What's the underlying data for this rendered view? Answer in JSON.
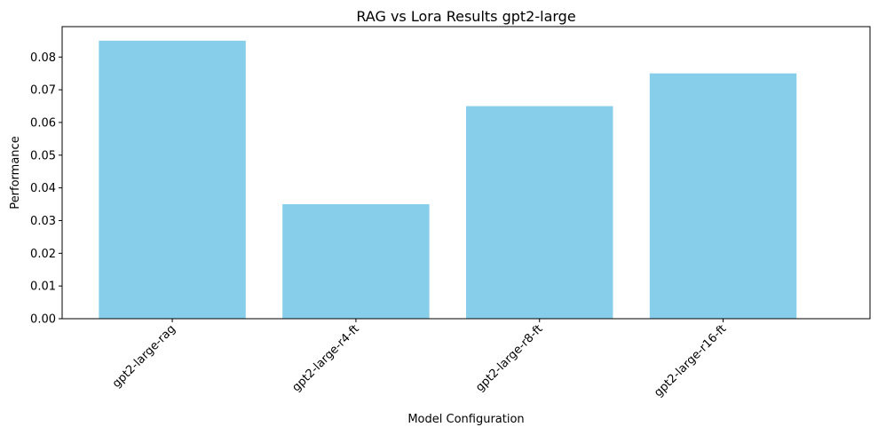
{
  "chart_data": {
    "type": "bar",
    "title": "RAG vs Lora Results gpt2-large",
    "xlabel": "Model Configuration",
    "ylabel": "Performance",
    "categories": [
      "gpt2-large-rag",
      "gpt2-large-r4-ft",
      "gpt2-large-r8-ft",
      "gpt2-large-r16-ft"
    ],
    "values": [
      0.085,
      0.035,
      0.065,
      0.075
    ],
    "ylim": [
      0,
      0.0893
    ],
    "yticks": [
      "0.00",
      "0.01",
      "0.02",
      "0.03",
      "0.04",
      "0.05",
      "0.06",
      "0.07",
      "0.08"
    ],
    "x_tick_rotation_deg": -45,
    "bar_color": "#87ceeb",
    "grid": false,
    "legend": "none"
  }
}
